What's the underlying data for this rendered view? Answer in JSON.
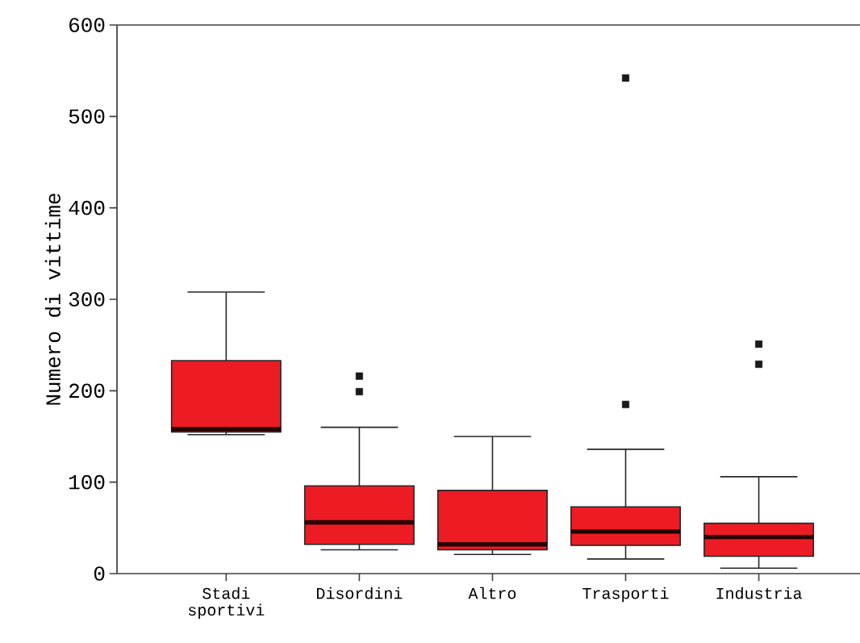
{
  "chart_data": {
    "type": "box",
    "ylabel": "Numero di vittime",
    "categories": [
      "Stadi sportivi",
      "Disordini",
      "Altro",
      "Trasporti",
      "Industria"
    ],
    "color": "#ed1c24",
    "ylim": [
      0,
      600
    ],
    "yticks": [
      0,
      100,
      200,
      300,
      400,
      500,
      600
    ],
    "boxes": [
      {
        "low": 152,
        "q1": 155,
        "median": 158,
        "q3": 233,
        "high": 308
      },
      {
        "low": 26,
        "q1": 32,
        "median": 56,
        "q3": 96,
        "high": 160,
        "outliers": [
          216,
          199
        ]
      },
      {
        "low": 21,
        "q1": 26,
        "median": 32,
        "q3": 91,
        "high": 150
      },
      {
        "low": 16,
        "q1": 31,
        "median": 46,
        "q3": 73,
        "high": 136,
        "outliers": [
          542,
          185
        ]
      },
      {
        "low": 6,
        "q1": 19,
        "median": 40,
        "q3": 55,
        "high": 106,
        "outliers": [
          251,
          229
        ]
      }
    ]
  }
}
